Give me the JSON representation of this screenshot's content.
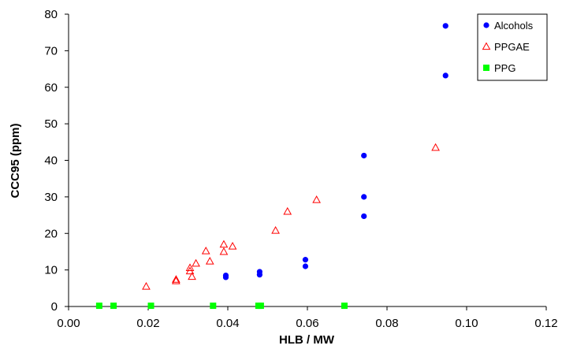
{
  "chart_data": {
    "type": "scatter",
    "title": "",
    "xlabel": "HLB / MW",
    "ylabel": "CCC95 (ppm)",
    "xlim": [
      0.0,
      0.12
    ],
    "ylim": [
      0,
      80
    ],
    "x_ticks": [
      "0.00",
      "0.02",
      "0.04",
      "0.06",
      "0.08",
      "0.10",
      "0.12"
    ],
    "y_ticks": [
      "0",
      "10",
      "20",
      "30",
      "40",
      "50",
      "60",
      "70",
      "80"
    ],
    "grid": false,
    "legend_position": "top-right",
    "series": [
      {
        "name": "Alcohols",
        "marker": "filled-circle",
        "color": "#0000ff",
        "points": [
          [
            0.0395,
            8.0
          ],
          [
            0.0395,
            8.5
          ],
          [
            0.048,
            8.7
          ],
          [
            0.048,
            9.5
          ],
          [
            0.0595,
            11.0
          ],
          [
            0.0595,
            12.8
          ],
          [
            0.0742,
            24.7
          ],
          [
            0.0742,
            30.0
          ],
          [
            0.0742,
            41.3
          ],
          [
            0.0947,
            63.2
          ],
          [
            0.0947,
            76.8
          ]
        ]
      },
      {
        "name": "PPGAE",
        "marker": "open-triangle",
        "color": "#ff0000",
        "points": [
          [
            0.0195,
            5.5
          ],
          [
            0.027,
            7.0
          ],
          [
            0.027,
            7.4
          ],
          [
            0.0305,
            9.7
          ],
          [
            0.0305,
            10.6
          ],
          [
            0.031,
            8.2
          ],
          [
            0.032,
            11.8
          ],
          [
            0.0345,
            15.2
          ],
          [
            0.0355,
            12.4
          ],
          [
            0.039,
            15.0
          ],
          [
            0.039,
            17.0
          ],
          [
            0.0412,
            16.5
          ],
          [
            0.052,
            20.8
          ],
          [
            0.055,
            26.0
          ],
          [
            0.0623,
            29.2
          ],
          [
            0.0922,
            43.5
          ]
        ]
      },
      {
        "name": "PPG",
        "marker": "filled-square",
        "color": "#00ff00",
        "points": [
          [
            0.0077,
            0.2
          ],
          [
            0.0113,
            0.2
          ],
          [
            0.0207,
            0.2
          ],
          [
            0.0363,
            0.2
          ],
          [
            0.0477,
            0.2
          ],
          [
            0.0483,
            0.2
          ],
          [
            0.0693,
            0.2
          ]
        ]
      }
    ]
  }
}
